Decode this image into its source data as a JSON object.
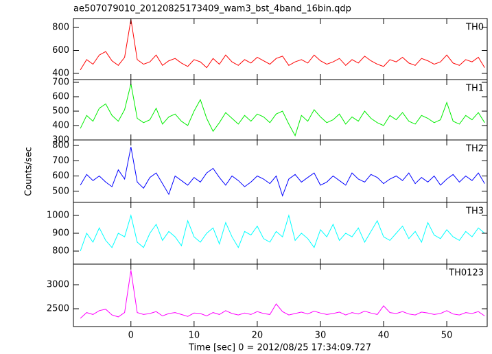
{
  "title": "ae507079010_20120825173409_wam3_bst_4band_16bin.qdp",
  "y_label": "Counts/sec",
  "x_label": "Time [sec] 0 = 2012/08/25 17:34:09.727",
  "chart_data": [
    {
      "type": "line",
      "xlim": [
        -9.1,
        56.4
      ],
      "xticks": [
        0,
        10,
        20,
        30,
        40,
        50
      ],
      "ylim": [
        346,
        878
      ],
      "yticks": [
        400,
        600,
        800
      ],
      "x": [
        -8,
        -7,
        -6,
        -5,
        -4,
        -3,
        -2,
        -1,
        0,
        1,
        2,
        3,
        4,
        5,
        6,
        7,
        8,
        9,
        10,
        11,
        12,
        13,
        14,
        15,
        16,
        17,
        18,
        19,
        20,
        21,
        22,
        23,
        24,
        25,
        26,
        27,
        28,
        29,
        30,
        31,
        32,
        33,
        34,
        35,
        36,
        37,
        38,
        39,
        40,
        41,
        42,
        43,
        44,
        45,
        46,
        47,
        48,
        49,
        50,
        51,
        52,
        53,
        54,
        55,
        56
      ],
      "series": [
        {
          "name": "TH0",
          "color": "#ff0000",
          "values": [
            430,
            520,
            480,
            560,
            590,
            510,
            470,
            540,
            870,
            520,
            480,
            500,
            560,
            470,
            510,
            530,
            490,
            460,
            520,
            500,
            450,
            530,
            480,
            560,
            500,
            470,
            520,
            490,
            540,
            510,
            480,
            530,
            550,
            470,
            500,
            520,
            490,
            560,
            510,
            480,
            500,
            530,
            470,
            520,
            490,
            550,
            510,
            480,
            460,
            520,
            500,
            540,
            490,
            470,
            530,
            510,
            480,
            500,
            560,
            490,
            470,
            520,
            500,
            540,
            450
          ]
        }
      ]
    },
    {
      "type": "line",
      "xlim": [
        -9.1,
        56.4
      ],
      "xticks": [
        0,
        10,
        20,
        30,
        40,
        50
      ],
      "ylim": [
        300,
        719
      ],
      "yticks": [
        300,
        400,
        500,
        600,
        700
      ],
      "x": [
        -8,
        -7,
        -6,
        -5,
        -4,
        -3,
        -2,
        -1,
        0,
        1,
        2,
        3,
        4,
        5,
        6,
        7,
        8,
        9,
        10,
        11,
        12,
        13,
        14,
        15,
        16,
        17,
        18,
        19,
        20,
        21,
        22,
        23,
        24,
        25,
        26,
        27,
        28,
        29,
        30,
        31,
        32,
        33,
        34,
        35,
        36,
        37,
        38,
        39,
        40,
        41,
        42,
        43,
        44,
        45,
        46,
        47,
        48,
        49,
        50,
        51,
        52,
        53,
        54,
        55,
        56
      ],
      "series": [
        {
          "name": "TH1",
          "color": "#00ee00",
          "values": [
            380,
            470,
            430,
            520,
            550,
            470,
            430,
            510,
            690,
            450,
            420,
            440,
            520,
            410,
            460,
            480,
            430,
            400,
            500,
            580,
            450,
            360,
            420,
            490,
            450,
            410,
            470,
            430,
            480,
            460,
            420,
            480,
            500,
            410,
            330,
            470,
            430,
            510,
            460,
            420,
            440,
            480,
            410,
            460,
            430,
            500,
            450,
            420,
            400,
            470,
            440,
            490,
            430,
            410,
            470,
            450,
            420,
            440,
            560,
            430,
            410,
            470,
            440,
            490,
            420
          ]
        }
      ]
    },
    {
      "type": "line",
      "xlim": [
        -9.1,
        56.4
      ],
      "xticks": [
        0,
        10,
        20,
        30,
        40,
        50
      ],
      "ylim": [
        427,
        836
      ],
      "yticks": [
        500,
        600,
        700,
        800
      ],
      "x": [
        -8,
        -7,
        -6,
        -5,
        -4,
        -3,
        -2,
        -1,
        0,
        1,
        2,
        3,
        4,
        5,
        6,
        7,
        8,
        9,
        10,
        11,
        12,
        13,
        14,
        15,
        16,
        17,
        18,
        19,
        20,
        21,
        22,
        23,
        24,
        25,
        26,
        27,
        28,
        29,
        30,
        31,
        32,
        33,
        34,
        35,
        36,
        37,
        38,
        39,
        40,
        41,
        42,
        43,
        44,
        45,
        46,
        47,
        48,
        49,
        50,
        51,
        52,
        53,
        54,
        55,
        56
      ],
      "series": [
        {
          "name": "TH2",
          "color": "#0000ff",
          "values": [
            540,
            610,
            570,
            600,
            560,
            530,
            640,
            580,
            790,
            560,
            520,
            590,
            620,
            550,
            480,
            600,
            570,
            540,
            590,
            560,
            620,
            650,
            590,
            540,
            600,
            570,
            530,
            560,
            600,
            580,
            550,
            600,
            470,
            580,
            610,
            560,
            590,
            620,
            540,
            560,
            600,
            570,
            540,
            620,
            580,
            560,
            610,
            590,
            550,
            580,
            600,
            570,
            620,
            550,
            590,
            560,
            600,
            540,
            580,
            610,
            560,
            600,
            570,
            620,
            550
          ]
        }
      ]
    },
    {
      "type": "line",
      "xlim": [
        -9.1,
        56.4
      ],
      "xticks": [
        0,
        10,
        20,
        30,
        40,
        50
      ],
      "ylim": [
        727,
        1073
      ],
      "yticks": [
        800,
        900,
        1000
      ],
      "x": [
        -8,
        -7,
        -6,
        -5,
        -4,
        -3,
        -2,
        -1,
        0,
        1,
        2,
        3,
        4,
        5,
        6,
        7,
        8,
        9,
        10,
        11,
        12,
        13,
        14,
        15,
        16,
        17,
        18,
        19,
        20,
        21,
        22,
        23,
        24,
        25,
        26,
        27,
        28,
        29,
        30,
        31,
        32,
        33,
        34,
        35,
        36,
        37,
        38,
        39,
        40,
        41,
        42,
        43,
        44,
        45,
        46,
        47,
        48,
        49,
        50,
        51,
        52,
        53,
        54,
        55,
        56
      ],
      "series": [
        {
          "name": "TH3",
          "color": "#00ffff",
          "values": [
            800,
            900,
            850,
            930,
            860,
            820,
            900,
            880,
            1000,
            850,
            820,
            900,
            950,
            860,
            910,
            880,
            830,
            970,
            880,
            850,
            900,
            930,
            840,
            960,
            880,
            820,
            910,
            890,
            940,
            870,
            850,
            910,
            880,
            1000,
            860,
            900,
            870,
            820,
            920,
            880,
            950,
            860,
            900,
            880,
            930,
            850,
            910,
            970,
            880,
            860,
            900,
            940,
            870,
            910,
            850,
            960,
            890,
            870,
            920,
            880,
            860,
            910,
            880,
            930,
            900
          ]
        }
      ]
    },
    {
      "type": "line",
      "xlim": [
        -9.1,
        56.4
      ],
      "xticks": [
        0,
        10,
        20,
        30,
        40,
        50
      ],
      "ylim": [
        2129,
        3429
      ],
      "yticks": [
        2500,
        3000
      ],
      "x": [
        -8,
        -7,
        -6,
        -5,
        -4,
        -3,
        -2,
        -1,
        0,
        1,
        2,
        3,
        4,
        5,
        6,
        7,
        8,
        9,
        10,
        11,
        12,
        13,
        14,
        15,
        16,
        17,
        18,
        19,
        20,
        21,
        22,
        23,
        24,
        25,
        26,
        27,
        28,
        29,
        30,
        31,
        32,
        33,
        34,
        35,
        36,
        37,
        38,
        39,
        40,
        41,
        42,
        43,
        44,
        45,
        46,
        47,
        48,
        49,
        50,
        51,
        52,
        53,
        54,
        55,
        56
      ],
      "series": [
        {
          "name": "TH0123",
          "color": "#ff00ff",
          "values": [
            2300,
            2420,
            2380,
            2460,
            2490,
            2370,
            2330,
            2420,
            3300,
            2420,
            2380,
            2400,
            2440,
            2350,
            2400,
            2420,
            2380,
            2340,
            2410,
            2400,
            2350,
            2420,
            2380,
            2460,
            2400,
            2370,
            2410,
            2380,
            2440,
            2400,
            2380,
            2600,
            2440,
            2370,
            2400,
            2430,
            2390,
            2450,
            2410,
            2380,
            2400,
            2430,
            2370,
            2420,
            2390,
            2450,
            2410,
            2380,
            2560,
            2420,
            2400,
            2440,
            2390,
            2370,
            2430,
            2410,
            2380,
            2400,
            2460,
            2390,
            2370,
            2420,
            2400,
            2440,
            2350
          ]
        }
      ]
    }
  ]
}
